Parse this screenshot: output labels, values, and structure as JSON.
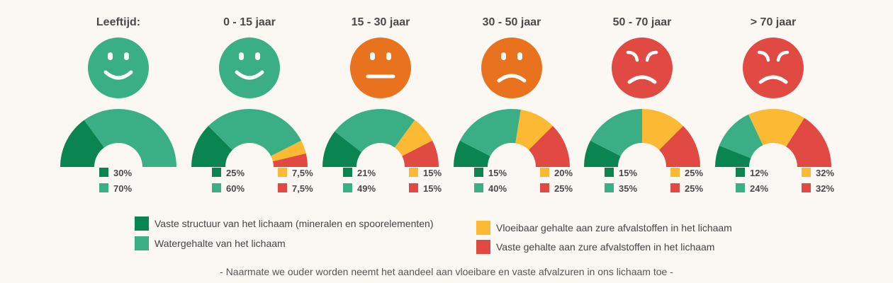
{
  "colors": {
    "vast": "#0a8552",
    "water": "#3aaf86",
    "vloeibaar": "#fbb934",
    "vastzuur": "#e04a42",
    "face_green": "#3aaf86",
    "face_orange": "#e8721e",
    "face_red": "#e04a42"
  },
  "chart_data": {
    "type": "pie",
    "subtype": "semicircle-gauges",
    "series_keys": [
      "vast",
      "water",
      "vloeibaar",
      "vastzuur"
    ],
    "groups": [
      {
        "label": "Leeftijd:",
        "face": "happy",
        "values": {
          "vast": 30,
          "water": 70,
          "vloeibaar": 0,
          "vastzuur": 0
        },
        "labels": {
          "vast": "30%",
          "water": "70%"
        }
      },
      {
        "label": "0 - 15 jaar",
        "face": "happy",
        "values": {
          "vast": 25,
          "water": 60,
          "vloeibaar": 7.5,
          "vastzuur": 7.5
        },
        "labels": {
          "vast": "25%",
          "water": "60%",
          "vloeibaar": "7,5%",
          "vastzuur": "7,5%"
        }
      },
      {
        "label": "15 - 30 jaar",
        "face": "neutral",
        "values": {
          "vast": 21,
          "water": 49,
          "vloeibaar": 15,
          "vastzuur": 15
        },
        "labels": {
          "vast": "21%",
          "water": "49%",
          "vloeibaar": "15%",
          "vastzuur": "15%"
        }
      },
      {
        "label": "30 - 50 jaar",
        "face": "sad",
        "values": {
          "vast": 15,
          "water": 40,
          "vloeibaar": 20,
          "vastzuur": 25
        },
        "labels": {
          "vast": "15%",
          "water": "40%",
          "vloeibaar": "20%",
          "vastzuur": "25%"
        }
      },
      {
        "label": "50 - 70 jaar",
        "face": "angry",
        "values": {
          "vast": 15,
          "water": 35,
          "vloeibaar": 25,
          "vastzuur": 25
        },
        "labels": {
          "vast": "15%",
          "water": "35%",
          "vloeibaar": "25%",
          "vastzuur": "25%"
        }
      },
      {
        "label": "> 70 jaar",
        "face": "angry",
        "values": {
          "vast": 12,
          "water": 24,
          "vloeibaar": 32,
          "vastzuur": 32
        },
        "labels": {
          "vast": "12%",
          "water": "24%",
          "vloeibaar": "32%",
          "vastzuur": "32%"
        }
      }
    ],
    "legend": {
      "vast": "Vaste structuur van het lichaam (mineralen en spoorelementen)",
      "water": "Watergehalte van het lichaam",
      "vloeibaar": "Vloeibaar gehalte aan zure afvalstoffen in het lichaam",
      "vastzuur": "Vaste gehalte aan zure afvalstoffen in het lichaam"
    },
    "caption": "- Naarmate we ouder worden neemt het aandeel aan vloeibare en vaste afvalzuren in ons lichaam toe -"
  }
}
